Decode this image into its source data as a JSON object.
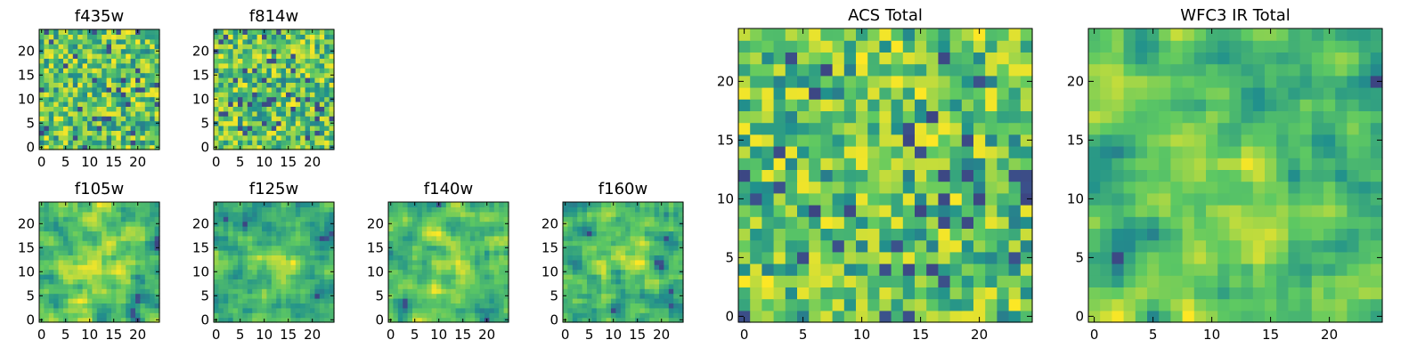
{
  "figure": {
    "background": "#ffffff"
  },
  "chart_data": [
    {
      "type": "heatmap",
      "title": "f435w",
      "x_ticks": [
        "0",
        "5",
        "10",
        "15",
        "20"
      ],
      "y_ticks": [
        "0",
        "5",
        "10",
        "15",
        "20"
      ],
      "xlim": [
        -0.5,
        24.5
      ],
      "ylim": [
        -0.5,
        24.5
      ],
      "grid": false,
      "legend": "none",
      "texture": "noisy"
    },
    {
      "type": "heatmap",
      "title": "f814w",
      "x_ticks": [
        "0",
        "5",
        "10",
        "15",
        "20"
      ],
      "y_ticks": [
        "0",
        "5",
        "10",
        "15",
        "20"
      ],
      "xlim": [
        -0.5,
        24.5
      ],
      "ylim": [
        -0.5,
        24.5
      ],
      "grid": false,
      "legend": "none",
      "texture": "noisy"
    },
    {
      "type": "heatmap",
      "title": "f105w",
      "x_ticks": [
        "0",
        "5",
        "10",
        "15",
        "20"
      ],
      "y_ticks": [
        "0",
        "5",
        "10",
        "15",
        "20"
      ],
      "xlim": [
        -0.5,
        24.5
      ],
      "ylim": [
        -0.5,
        24.5
      ],
      "grid": false,
      "legend": "none",
      "texture": "smooth"
    },
    {
      "type": "heatmap",
      "title": "f125w",
      "x_ticks": [
        "0",
        "5",
        "10",
        "15",
        "20"
      ],
      "y_ticks": [
        "0",
        "5",
        "10",
        "15",
        "20"
      ],
      "xlim": [
        -0.5,
        24.5
      ],
      "ylim": [
        -0.5,
        24.5
      ],
      "grid": false,
      "legend": "none",
      "texture": "smooth"
    },
    {
      "type": "heatmap",
      "title": "f140w",
      "x_ticks": [
        "0",
        "5",
        "10",
        "15",
        "20"
      ],
      "y_ticks": [
        "0",
        "5",
        "10",
        "15",
        "20"
      ],
      "xlim": [
        -0.5,
        24.5
      ],
      "ylim": [
        -0.5,
        24.5
      ],
      "grid": false,
      "legend": "none",
      "texture": "smooth"
    },
    {
      "type": "heatmap",
      "title": "f160w",
      "x_ticks": [
        "0",
        "5",
        "10",
        "15",
        "20"
      ],
      "y_ticks": [
        "0",
        "5",
        "10",
        "15",
        "20"
      ],
      "xlim": [
        -0.5,
        24.5
      ],
      "ylim": [
        -0.5,
        24.5
      ],
      "grid": false,
      "legend": "none",
      "texture": "smooth"
    },
    {
      "type": "heatmap",
      "title": "ACS Total",
      "x_ticks": [
        "0",
        "5",
        "10",
        "15",
        "20"
      ],
      "y_ticks": [
        "0",
        "5",
        "10",
        "15",
        "20"
      ],
      "xlim": [
        -0.5,
        24.5
      ],
      "ylim": [
        -0.5,
        24.5
      ],
      "grid": false,
      "legend": "none",
      "texture": "noisy"
    },
    {
      "type": "heatmap",
      "title": "WFC3 IR Total",
      "x_ticks": [
        "0",
        "5",
        "10",
        "15",
        "20"
      ],
      "y_ticks": [
        "0",
        "5",
        "10",
        "15",
        "20"
      ],
      "xlim": [
        -0.5,
        24.5
      ],
      "ylim": [
        -0.5,
        24.5
      ],
      "grid": false,
      "legend": "none",
      "texture": "smooth"
    }
  ],
  "colormap": {
    "name": "viridis",
    "stops": [
      "#440154",
      "#3b528b",
      "#21918c",
      "#5ec962",
      "#fde725"
    ]
  }
}
